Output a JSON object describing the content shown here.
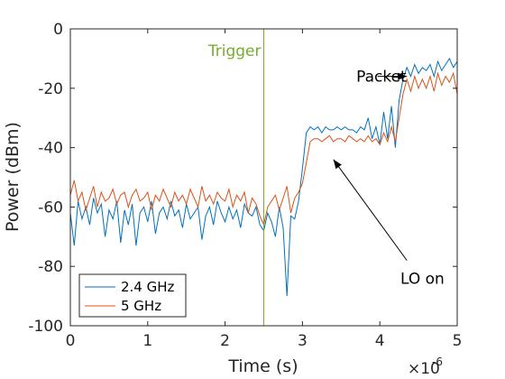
{
  "chart_data": {
    "type": "line",
    "xlabel": "Time (s)",
    "ylabel": "Power (dBm)",
    "x_multiplier_label": "×10",
    "x_multiplier_exp": "-6",
    "xlim": [
      0,
      5
    ],
    "ylim": [
      -100,
      0
    ],
    "xticks": [
      0,
      1,
      2,
      3,
      4,
      5
    ],
    "xtick_labels": [
      "0",
      "1",
      "2",
      "3",
      "4",
      "5"
    ],
    "yticks": [
      0,
      -20,
      -40,
      -60,
      -80,
      -100
    ],
    "ytick_labels": [
      "0",
      "-20",
      "-40",
      "-60",
      "-80",
      "-100"
    ],
    "grid": false,
    "legend_position": "bottom-left",
    "x_unit_scale": 1e-06,
    "series": [
      {
        "name": "2.4 GHz",
        "color": "#0072BD",
        "x": [
          0.0,
          0.05,
          0.1,
          0.15,
          0.2,
          0.25,
          0.3,
          0.35,
          0.4,
          0.45,
          0.5,
          0.55,
          0.6,
          0.65,
          0.7,
          0.75,
          0.8,
          0.85,
          0.9,
          0.95,
          1.0,
          1.05,
          1.1,
          1.15,
          1.2,
          1.25,
          1.3,
          1.35,
          1.4,
          1.45,
          1.5,
          1.55,
          1.6,
          1.65,
          1.7,
          1.75,
          1.8,
          1.85,
          1.9,
          1.95,
          2.0,
          2.05,
          2.1,
          2.15,
          2.2,
          2.25,
          2.3,
          2.35,
          2.4,
          2.45,
          2.5,
          2.55,
          2.6,
          2.65,
          2.7,
          2.75,
          2.8,
          2.85,
          2.9,
          2.95,
          3.0,
          3.05,
          3.1,
          3.15,
          3.2,
          3.25,
          3.3,
          3.35,
          3.4,
          3.45,
          3.5,
          3.55,
          3.6,
          3.65,
          3.7,
          3.75,
          3.8,
          3.85,
          3.9,
          3.95,
          4.0,
          4.05,
          4.1,
          4.15,
          4.2,
          4.25,
          4.3,
          4.35,
          4.4,
          4.45,
          4.5,
          4.55,
          4.6,
          4.65,
          4.7,
          4.75,
          4.8,
          4.85,
          4.9,
          4.95,
          5.0
        ],
        "values": [
          -62,
          -73,
          -58,
          -64,
          -60,
          -66,
          -57,
          -62,
          -59,
          -70,
          -61,
          -64,
          -58,
          -72,
          -61,
          -66,
          -59,
          -73,
          -62,
          -60,
          -65,
          -58,
          -69,
          -62,
          -60,
          -64,
          -58,
          -63,
          -61,
          -67,
          -59,
          -64,
          -62,
          -60,
          -71,
          -63,
          -60,
          -66,
          -58,
          -62,
          -65,
          -60,
          -64,
          -61,
          -67,
          -59,
          -62,
          -63,
          -60,
          -66,
          -68,
          -62,
          -65,
          -70,
          -60,
          -67,
          -90,
          -63,
          -64,
          -58,
          -47,
          -35,
          -33,
          -34,
          -33,
          -35,
          -33,
          -34,
          -34,
          -33,
          -34,
          -33,
          -34,
          -34,
          -35,
          -33,
          -34,
          -30,
          -37,
          -33,
          -39,
          -28,
          -37,
          -26,
          -40,
          -24,
          -17,
          -13,
          -16,
          -12,
          -15,
          -13,
          -14,
          -12,
          -16,
          -11,
          -14,
          -12,
          -10,
          -13,
          -11
        ]
      },
      {
        "name": "5 GHz",
        "color": "#D95319",
        "x": [
          0.0,
          0.05,
          0.1,
          0.15,
          0.2,
          0.25,
          0.3,
          0.35,
          0.4,
          0.45,
          0.5,
          0.55,
          0.6,
          0.65,
          0.7,
          0.75,
          0.8,
          0.85,
          0.9,
          0.95,
          1.0,
          1.05,
          1.1,
          1.15,
          1.2,
          1.25,
          1.3,
          1.35,
          1.4,
          1.45,
          1.5,
          1.55,
          1.6,
          1.65,
          1.7,
          1.75,
          1.8,
          1.85,
          1.9,
          1.95,
          2.0,
          2.05,
          2.1,
          2.15,
          2.2,
          2.25,
          2.3,
          2.35,
          2.4,
          2.45,
          2.5,
          2.55,
          2.6,
          2.65,
          2.7,
          2.75,
          2.8,
          2.85,
          2.9,
          2.95,
          3.0,
          3.05,
          3.1,
          3.15,
          3.2,
          3.25,
          3.3,
          3.35,
          3.4,
          3.45,
          3.5,
          3.55,
          3.6,
          3.65,
          3.7,
          3.75,
          3.8,
          3.85,
          3.9,
          3.95,
          4.0,
          4.05,
          4.1,
          4.15,
          4.2,
          4.25,
          4.3,
          4.35,
          4.4,
          4.45,
          4.5,
          4.55,
          4.6,
          4.65,
          4.7,
          4.75,
          4.8,
          4.85,
          4.9,
          4.95,
          5.0
        ],
        "values": [
          -56,
          -51,
          -58,
          -55,
          -61,
          -57,
          -53,
          -60,
          -55,
          -58,
          -57,
          -54,
          -59,
          -56,
          -55,
          -60,
          -56,
          -54,
          -58,
          -57,
          -55,
          -61,
          -56,
          -58,
          -54,
          -57,
          -60,
          -55,
          -58,
          -56,
          -59,
          -54,
          -57,
          -60,
          -53,
          -58,
          -56,
          -59,
          -55,
          -57,
          -58,
          -54,
          -60,
          -56,
          -58,
          -55,
          -62,
          -57,
          -59,
          -63,
          -66,
          -60,
          -58,
          -56,
          -61,
          -57,
          -53,
          -62,
          -57,
          -55,
          -52,
          -45,
          -38,
          -37,
          -37,
          -38,
          -37,
          -36,
          -38,
          -37,
          -37,
          -38,
          -36,
          -37,
          -38,
          -37,
          -38,
          -36,
          -38,
          -37,
          -39,
          -35,
          -38,
          -33,
          -38,
          -30,
          -22,
          -17,
          -21,
          -16,
          -20,
          -17,
          -20,
          -16,
          -21,
          -15,
          -19,
          -16,
          -18,
          -15,
          -22
        ]
      }
    ],
    "vline": {
      "x": 2.5,
      "label": "Trigger",
      "color": "#77AC30"
    },
    "annotations": [
      {
        "text": "Packet",
        "text_x": 4.02,
        "text_y": -16,
        "arrow_from": [
          3.97,
          -16
        ],
        "arrow_to": [
          4.35,
          -16
        ]
      },
      {
        "text": "LO on",
        "text_x": 4.55,
        "text_y": -84,
        "arrow_from": [
          4.35,
          -78
        ],
        "arrow_to": [
          3.4,
          -44
        ]
      }
    ]
  }
}
